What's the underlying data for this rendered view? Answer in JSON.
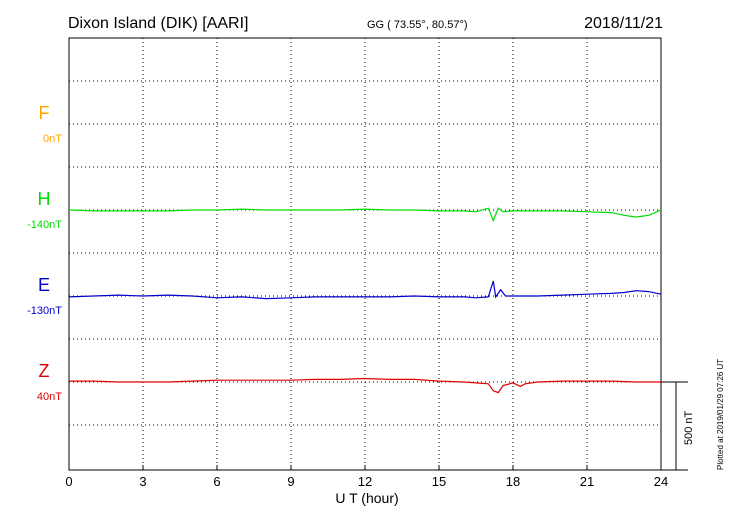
{
  "header": {
    "station": "Dixon Island (DIK)  [AARI]",
    "coords": "GG ( 73.55°,  80.57°)",
    "date": "2018/11/21"
  },
  "footnote": "Plotted at 2019/01/29 07:26 UT",
  "colors": {
    "F": "#ffa500",
    "H": "#00dd00",
    "E": "#0000cc",
    "Z": "#dd0000"
  },
  "chart_data": {
    "type": "line",
    "xlabel": "U T (hour)",
    "xlim": [
      0,
      24
    ],
    "xticks": [
      0,
      3,
      6,
      9,
      12,
      15,
      18,
      21,
      24
    ],
    "scale_bar": {
      "label": "500 nT",
      "value_nT": 500
    },
    "grid": "dotted",
    "series": [
      {
        "name": "F",
        "baseline": "0nT",
        "values": []
      },
      {
        "name": "H",
        "baseline": "-140nT",
        "x": [
          0,
          1,
          2,
          3,
          4,
          5,
          6,
          7,
          8,
          9,
          10,
          11,
          12,
          13,
          14,
          15,
          16,
          16.5,
          17,
          17.2,
          17.4,
          17.6,
          18,
          19,
          20,
          21,
          22,
          22.5,
          23,
          23.5,
          24
        ],
        "y": [
          0,
          -5,
          -5,
          -5,
          -5,
          0,
          0,
          5,
          0,
          0,
          0,
          0,
          5,
          0,
          0,
          -5,
          -5,
          -10,
          10,
          -60,
          10,
          -10,
          -5,
          -5,
          -5,
          -10,
          -15,
          -30,
          -40,
          -30,
          0
        ]
      },
      {
        "name": "E",
        "baseline": "-130nT",
        "x": [
          0,
          1,
          2,
          3,
          4,
          5,
          6,
          7,
          8,
          9,
          10,
          11,
          12,
          13,
          14,
          15,
          16,
          16.5,
          17,
          17.2,
          17.3,
          17.5,
          17.7,
          18,
          19,
          20,
          21,
          22,
          22.5,
          23,
          23.5,
          24
        ],
        "y": [
          -5,
          0,
          5,
          0,
          5,
          0,
          -10,
          -5,
          -15,
          -10,
          -5,
          -5,
          -5,
          -5,
          0,
          -5,
          -5,
          -10,
          -5,
          85,
          -5,
          35,
          0,
          0,
          0,
          5,
          10,
          15,
          20,
          30,
          25,
          10
        ]
      },
      {
        "name": "Z",
        "baseline": "40nT",
        "x": [
          0,
          1,
          2,
          3,
          4,
          5,
          6,
          7,
          8,
          9,
          10,
          11,
          12,
          13,
          14,
          15,
          16,
          17,
          17.2,
          17.4,
          17.6,
          18,
          18.3,
          18.5,
          19,
          20,
          21,
          22,
          23,
          24
        ],
        "y": [
          5,
          5,
          0,
          0,
          0,
          5,
          10,
          10,
          10,
          10,
          15,
          15,
          20,
          15,
          15,
          5,
          0,
          -10,
          -50,
          -60,
          -20,
          -5,
          -25,
          -10,
          0,
          5,
          5,
          5,
          0,
          0
        ]
      }
    ]
  }
}
